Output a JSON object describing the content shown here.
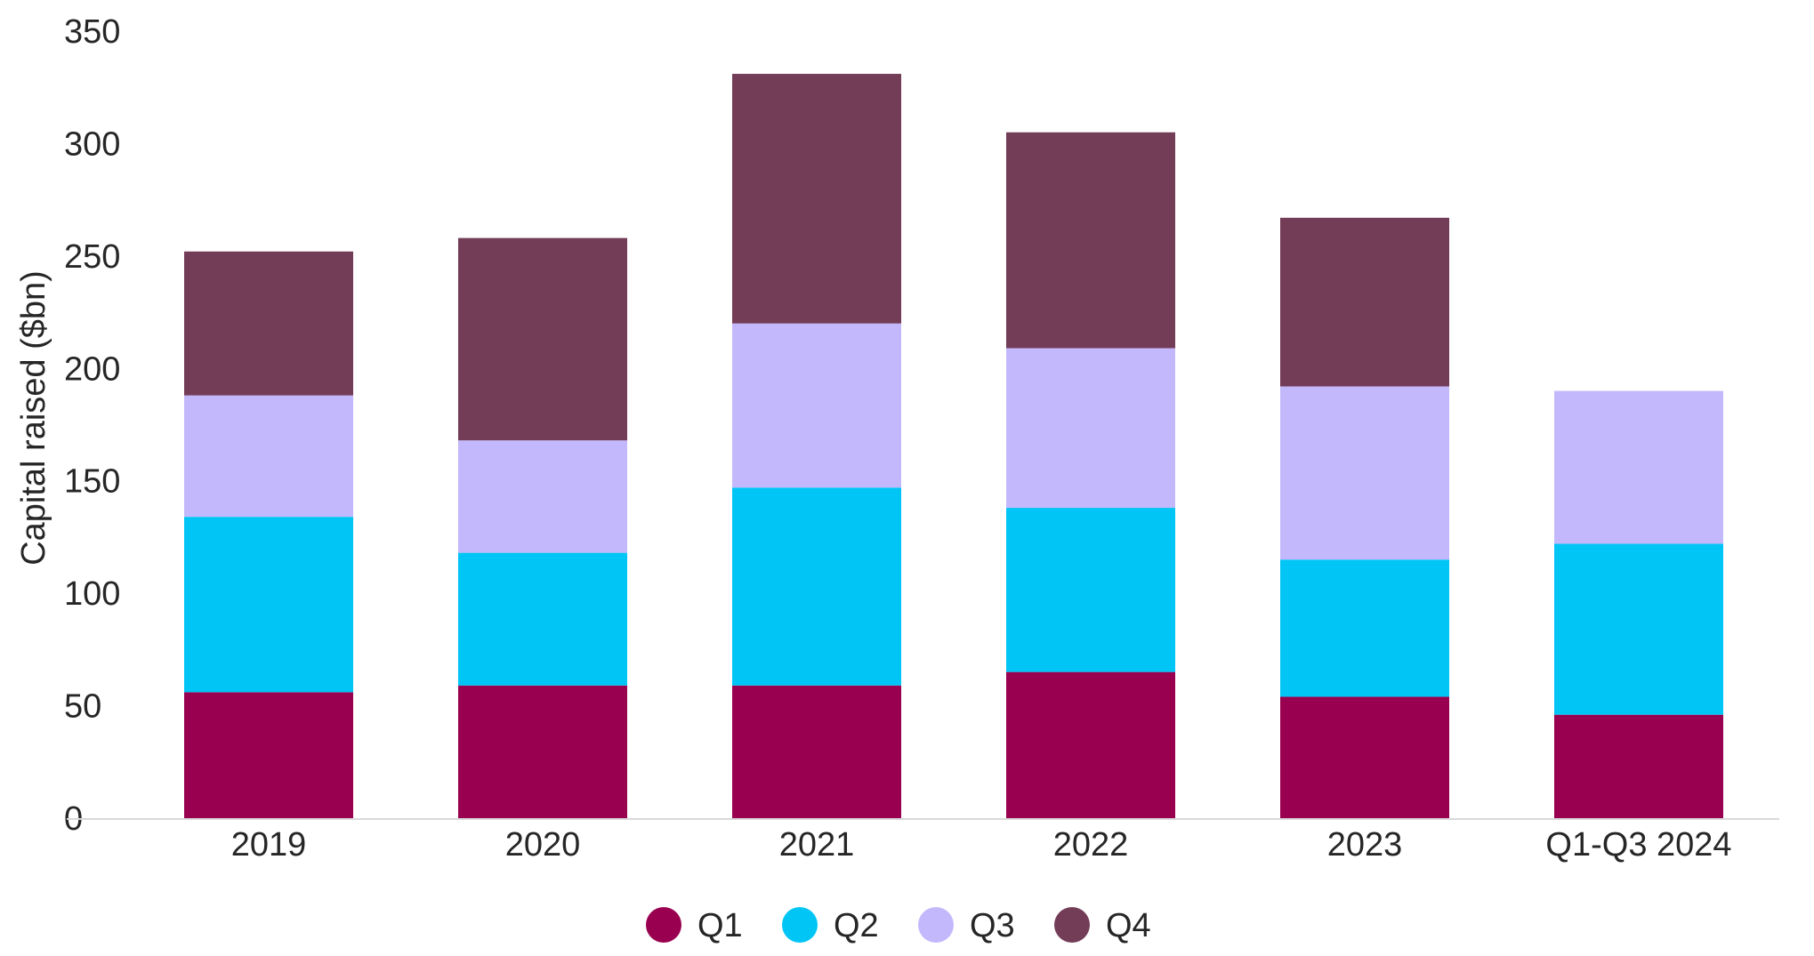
{
  "chart_data": {
    "type": "bar",
    "stacked": true,
    "title": "",
    "xlabel": "",
    "ylabel": "Capital raised ($bn)",
    "ylim": [
      0,
      350
    ],
    "yticks": [
      0,
      50,
      100,
      150,
      200,
      250,
      300,
      350
    ],
    "categories": [
      "2019",
      "2020",
      "2021",
      "2022",
      "2023",
      "Q1-Q3 2024"
    ],
    "series": [
      {
        "name": "Q1",
        "color": "#990050",
        "values": [
          56,
          59,
          59,
          65,
          54,
          46
        ]
      },
      {
        "name": "Q2",
        "color": "#00C5F5",
        "values": [
          78,
          59,
          88,
          73,
          61,
          76
        ]
      },
      {
        "name": "Q3",
        "color": "#C4B8FC",
        "values": [
          54,
          50,
          73,
          71,
          77,
          68
        ]
      },
      {
        "name": "Q4",
        "color": "#733C57",
        "values": [
          64,
          90,
          111,
          96,
          75,
          0
        ]
      }
    ],
    "grid": false,
    "legend": "bottom-center"
  }
}
